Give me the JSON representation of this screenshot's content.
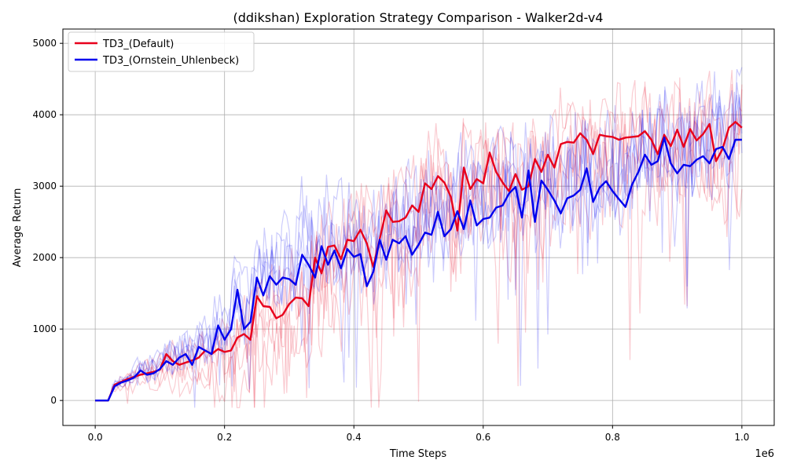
{
  "chart_data": {
    "type": "line",
    "title": "(ddikshan) Exploration Strategy Comparison - Walker2d-v4",
    "xlabel": "Time Steps",
    "ylabel": "Average Return",
    "x_offset_label": "1e6",
    "xlim": [
      -0.05,
      1.05
    ],
    "ylim": [
      -350,
      5200
    ],
    "x_ticks": [
      0.0,
      0.2,
      0.4,
      0.6,
      0.8,
      1.0
    ],
    "x_tick_labels": [
      "0.0",
      "0.2",
      "0.4",
      "0.6",
      "0.8",
      "1.0"
    ],
    "y_ticks": [
      0,
      1000,
      2000,
      3000,
      4000,
      5000
    ],
    "y_tick_labels": [
      "0",
      "1000",
      "2000",
      "3000",
      "4000",
      "5000"
    ],
    "grid": true,
    "legend_position": "top-left",
    "series": [
      {
        "name": "TD3_(Default)",
        "color": "#e8001c",
        "x": [
          0.0,
          0.02,
          0.03,
          0.04,
          0.05,
          0.06,
          0.07,
          0.08,
          0.09,
          0.1,
          0.11,
          0.12,
          0.13,
          0.14,
          0.15,
          0.16,
          0.17,
          0.18,
          0.19,
          0.2,
          0.21,
          0.22,
          0.23,
          0.24,
          0.25,
          0.26,
          0.27,
          0.28,
          0.29,
          0.3,
          0.31,
          0.32,
          0.33,
          0.34,
          0.35,
          0.36,
          0.37,
          0.38,
          0.39,
          0.4,
          0.41,
          0.42,
          0.43,
          0.44,
          0.45,
          0.46,
          0.47,
          0.48,
          0.49,
          0.5,
          0.51,
          0.52,
          0.53,
          0.54,
          0.55,
          0.56,
          0.57,
          0.58,
          0.59,
          0.6,
          0.61,
          0.62,
          0.63,
          0.64,
          0.65,
          0.66,
          0.67,
          0.68,
          0.69,
          0.7,
          0.71,
          0.72,
          0.73,
          0.74,
          0.75,
          0.76,
          0.77,
          0.78,
          0.79,
          0.8,
          0.81,
          0.82,
          0.83,
          0.84,
          0.85,
          0.86,
          0.87,
          0.88,
          0.89,
          0.9,
          0.91,
          0.92,
          0.93,
          0.94,
          0.95,
          0.96,
          0.97,
          0.98,
          0.99,
          1.0
        ],
        "y": [
          0,
          0,
          220,
          260,
          300,
          330,
          360,
          380,
          400,
          430,
          650,
          550,
          500,
          530,
          560,
          600,
          700,
          650,
          720,
          680,
          700,
          880,
          930,
          850,
          1460,
          1320,
          1310,
          1150,
          1200,
          1350,
          1440,
          1430,
          1320,
          2000,
          1780,
          2150,
          2170,
          1980,
          2250,
          2230,
          2390,
          2200,
          1870,
          2260,
          2660,
          2500,
          2510,
          2560,
          2730,
          2640,
          3040,
          2960,
          3140,
          3050,
          2850,
          2380,
          3260,
          2960,
          3100,
          3040,
          3470,
          3200,
          3050,
          2930,
          3170,
          2950,
          3000,
          3380,
          3200,
          3440,
          3260,
          3590,
          3620,
          3610,
          3740,
          3650,
          3450,
          3720,
          3700,
          3690,
          3650,
          3680,
          3690,
          3700,
          3770,
          3650,
          3450,
          3720,
          3560,
          3790,
          3550,
          3800,
          3640,
          3730,
          3870,
          3350,
          3520,
          3820,
          3900,
          3820
        ]
      },
      {
        "name": "TD3_(Ornstein_Uhlenbeck)",
        "color": "#0000ee",
        "x": [
          0.0,
          0.02,
          0.03,
          0.04,
          0.05,
          0.06,
          0.07,
          0.08,
          0.09,
          0.1,
          0.11,
          0.12,
          0.13,
          0.14,
          0.15,
          0.16,
          0.17,
          0.18,
          0.19,
          0.2,
          0.21,
          0.22,
          0.23,
          0.24,
          0.25,
          0.26,
          0.27,
          0.28,
          0.29,
          0.3,
          0.31,
          0.32,
          0.33,
          0.34,
          0.35,
          0.36,
          0.37,
          0.38,
          0.39,
          0.4,
          0.41,
          0.42,
          0.43,
          0.44,
          0.45,
          0.46,
          0.47,
          0.48,
          0.49,
          0.5,
          0.51,
          0.52,
          0.53,
          0.54,
          0.55,
          0.56,
          0.57,
          0.58,
          0.59,
          0.6,
          0.61,
          0.62,
          0.63,
          0.64,
          0.65,
          0.66,
          0.67,
          0.68,
          0.69,
          0.7,
          0.71,
          0.72,
          0.73,
          0.74,
          0.75,
          0.76,
          0.77,
          0.78,
          0.79,
          0.8,
          0.81,
          0.82,
          0.83,
          0.84,
          0.85,
          0.86,
          0.87,
          0.88,
          0.89,
          0.9,
          0.91,
          0.92,
          0.93,
          0.94,
          0.95,
          0.96,
          0.97,
          0.98,
          0.99,
          1.0
        ],
        "y": [
          0,
          0,
          200,
          250,
          280,
          320,
          420,
          360,
          380,
          440,
          550,
          500,
          600,
          650,
          500,
          750,
          700,
          650,
          1050,
          850,
          1000,
          1550,
          1000,
          1100,
          1720,
          1470,
          1740,
          1620,
          1720,
          1700,
          1620,
          2040,
          1900,
          1720,
          2160,
          1900,
          2100,
          1850,
          2120,
          2010,
          2050,
          1600,
          1800,
          2250,
          1970,
          2250,
          2200,
          2300,
          2040,
          2180,
          2350,
          2320,
          2640,
          2300,
          2400,
          2650,
          2400,
          2800,
          2450,
          2540,
          2560,
          2700,
          2730,
          2900,
          2990,
          2560,
          3220,
          2500,
          3080,
          2950,
          2800,
          2620,
          2830,
          2870,
          2950,
          3250,
          2780,
          2980,
          3070,
          2930,
          2820,
          2710,
          3020,
          3200,
          3440,
          3300,
          3350,
          3680,
          3320,
          3180,
          3300,
          3280,
          3370,
          3420,
          3320,
          3520,
          3550,
          3380,
          3650,
          3650
        ]
      }
    ]
  }
}
